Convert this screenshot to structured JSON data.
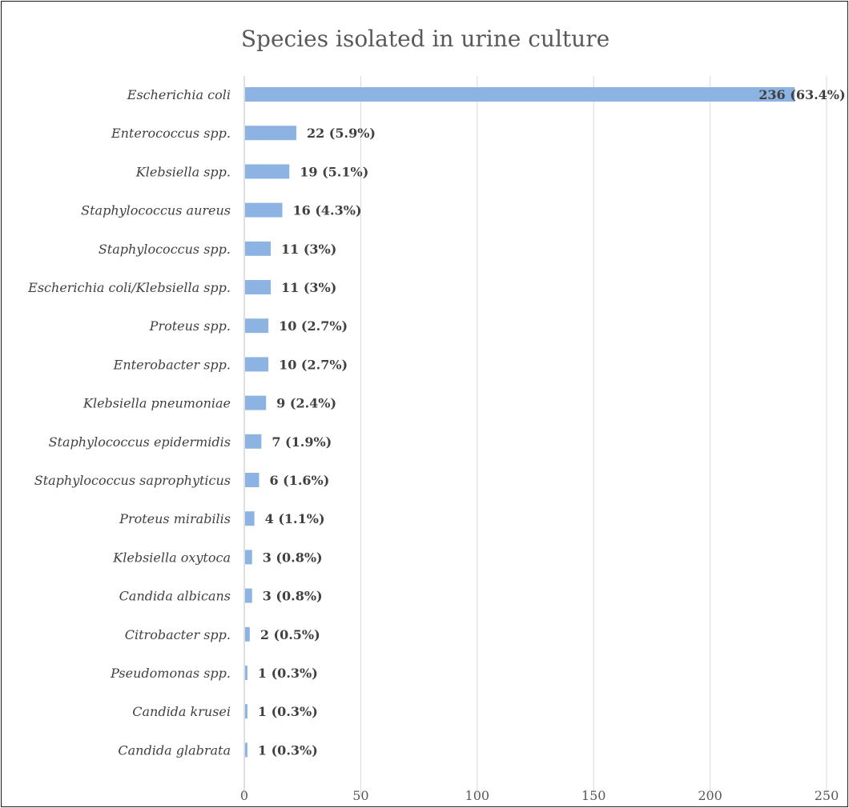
{
  "chart_data": {
    "type": "bar",
    "orientation": "horizontal",
    "title": "Species isolated in urine culture",
    "xlabel": "",
    "ylabel": "",
    "xlim": [
      0,
      250
    ],
    "x_ticks": [
      "0",
      "50",
      "100",
      "150",
      "200",
      "250"
    ],
    "grid": true,
    "legend": "none",
    "bar_color": "#8db3e2",
    "categories": [
      "Escherichia coli",
      "Enterococcus spp.",
      "Klebsiella spp.",
      "Staphylococcus aureus",
      "Staphylococcus spp.",
      "Escherichia coli/Klebsiella spp.",
      "Proteus spp.",
      "Enterobacter spp.",
      "Klebsiella pneumoniae",
      "Staphylococcus epidermidis",
      "Staphylococcus saprophyticus",
      "Proteus mirabilis",
      "Klebsiella oxytoca",
      "Candida albicans",
      "Citrobacter spp.",
      "Pseudomonas spp.",
      "Candida krusei",
      "Candida glabrata"
    ],
    "values": [
      236,
      22,
      19,
      16,
      11,
      11,
      10,
      10,
      9,
      7,
      6,
      4,
      3,
      3,
      2,
      1,
      1,
      1
    ],
    "data_labels": [
      "236 (63.4%)",
      "22 (5.9%)",
      "19 (5.1%)",
      "16 (4.3%)",
      "11 (3%)",
      "11 (3%)",
      "10 (2.7%)",
      "10 (2.7%)",
      "9 (2.4%)",
      "7 (1.9%)",
      "6 (1.6%)",
      "4 (1.1%)",
      "3 (0.8%)",
      "3 (0.8%)",
      "2 (0.5%)",
      "1 (0.3%)",
      "1 (0.3%)",
      "1 (0.3%)"
    ]
  }
}
